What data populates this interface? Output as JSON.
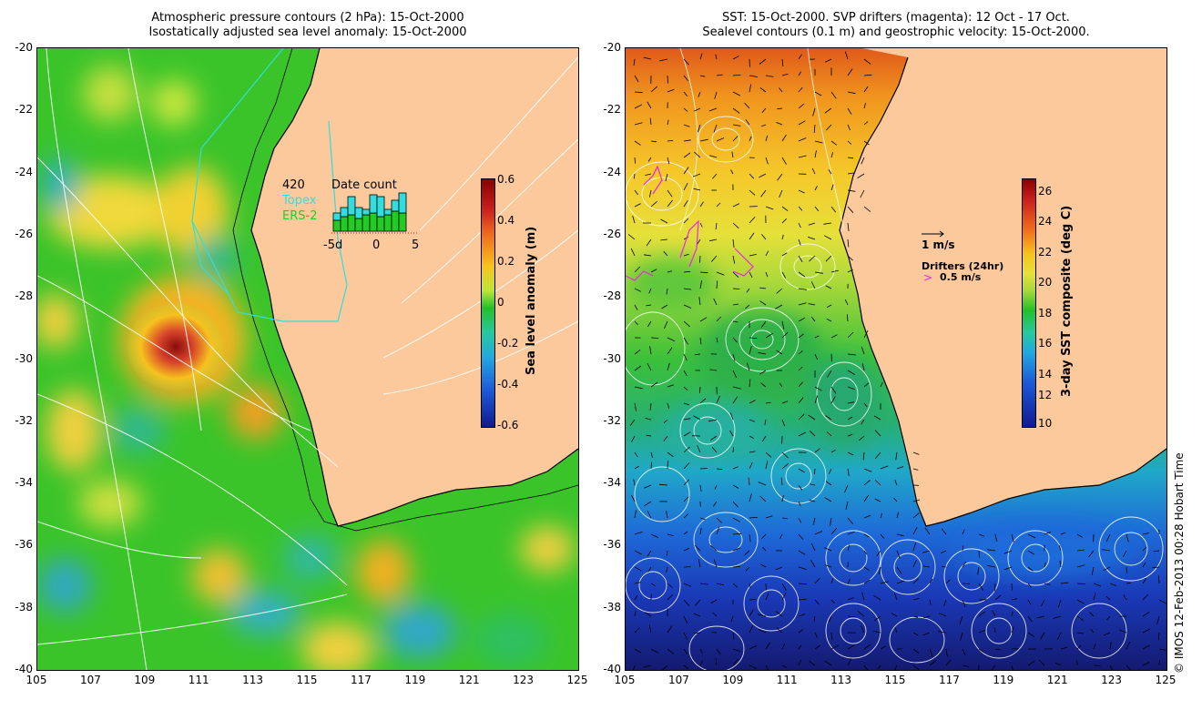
{
  "left_panel": {
    "title_line1": "Atmospheric pressure contours (2 hPa): 15-Oct-2000",
    "title_line2": "Isostatically adjusted sea level anomaly: 15-Oct-2000",
    "colorbar_label": "Sea level anomaly (m)",
    "colorbar_ticks": [
      "0.6",
      "0.4",
      "0.2",
      "0",
      "-0.2",
      "-0.4",
      "-0.6"
    ],
    "inset": {
      "count": "420",
      "topex_label": "Topex",
      "ers_label": "ERS-2",
      "title": "Date count",
      "x_ticks": [
        "-5d",
        "0",
        "5"
      ]
    }
  },
  "right_panel": {
    "title_line1": "SST: 15-Oct-2000. SVP drifters (magenta): 12 Oct - 17 Oct.",
    "title_line2": "Sealevel contours (0.1 m) and geostrophic velocity: 15-Oct-2000.",
    "colorbar_label": "3-day SST composite (deg C)",
    "colorbar_ticks": [
      "26",
      "24",
      "22",
      "20",
      "18",
      "16",
      "14",
      "12",
      "10"
    ],
    "vector_scale_label": "1 m/s",
    "drifter_label": "Drifters (24hr)",
    "drifter_scale_label": "0.5 m/s"
  },
  "axes": {
    "y_ticks": [
      "-20",
      "-22",
      "-24",
      "-26",
      "-28",
      "-30",
      "-32",
      "-34",
      "-36",
      "-38",
      "-40"
    ],
    "x_ticks": [
      "105",
      "107",
      "109",
      "111",
      "113",
      "115",
      "117",
      "119",
      "121",
      "123",
      "125"
    ]
  },
  "credit": "© IMOS 12-Feb-2013 00:28 Hobart Time",
  "colors": {
    "land": "#fbc99b",
    "sla_zero": "#22c02a",
    "topex": "#33dddd",
    "ers": "#22cc22",
    "drifter": "#ee22ee"
  }
}
